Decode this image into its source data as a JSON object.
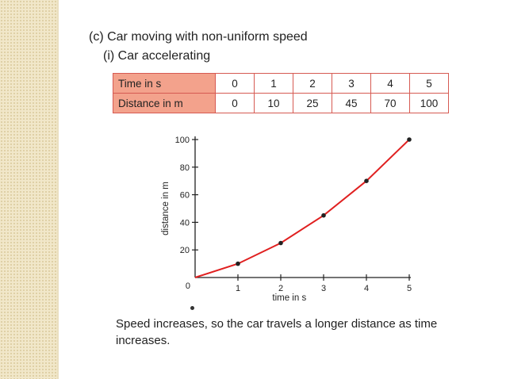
{
  "heading": "(c)  Car moving with non-uniform speed",
  "subheading": "(i)   Car accelerating",
  "table": {
    "row1_label": "Time in s",
    "row1_values": [
      "0",
      "1",
      "2",
      "3",
      "4",
      "5"
    ],
    "row2_label": "Distance in m",
    "row2_values": [
      "0",
      "10",
      "25",
      "45",
      "70",
      "100"
    ]
  },
  "chart_data": {
    "type": "line",
    "x": [
      0,
      1,
      2,
      3,
      4,
      5
    ],
    "series": [
      {
        "values": [
          0,
          10,
          25,
          45,
          70,
          100
        ],
        "color": "#e02020"
      }
    ],
    "xlabel": "time in s",
    "ylabel": "distance in m",
    "xticks": [
      "0",
      "1",
      "2",
      "3",
      "4",
      "5"
    ],
    "yticks": [
      "20",
      "40",
      "60",
      "80",
      "100"
    ],
    "xlim": [
      0,
      5
    ],
    "ylim": [
      0,
      100
    ],
    "grid": false
  },
  "footer": "Speed increases, so the car travels a longer distance as time increases.",
  "colors": {
    "table_header_bg": "#f3a28c",
    "table_border": "#d65a52",
    "line": "#e02020",
    "sidebar": "#f1e7c9"
  }
}
